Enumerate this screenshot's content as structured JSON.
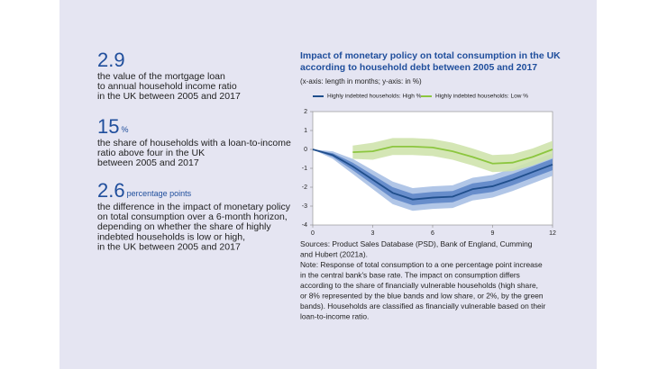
{
  "key_figures": [
    {
      "figure": "2.9",
      "lines": [
        "the value of the mortgage loan",
        "to annual household income ratio",
        "in the UK between 2005 and 2017"
      ]
    },
    {
      "figure": "15",
      "unit": "%",
      "lines": [
        "the share of households with a loan-to-income",
        "ratio above four in the UK",
        "between 2005 and 2017"
      ]
    },
    {
      "figure": "2.6",
      "unit": "percentage points",
      "lines": [
        "the difference in the impact of monetary policy",
        "on total consumption over a 6-month horizon,",
        "depending on whether the share of highly",
        "indebted households is low or high,",
        "in the UK between 2005 and 2017"
      ]
    }
  ],
  "chart_data": {
    "type": "line",
    "title_lines": [
      "Impact of monetary policy on total consumption in the UK",
      "according to household debt between 2005 and 2017"
    ],
    "subtitle": "(x-axis: length in months; y-axis: in %)",
    "x": [
      0,
      1,
      2,
      3,
      4,
      5,
      6,
      7,
      8,
      9,
      10,
      11,
      12
    ],
    "xlim": [
      0,
      12
    ],
    "xticks": [
      0,
      3,
      6,
      9,
      12
    ],
    "ylim": [
      -4,
      2
    ],
    "yticks": [
      -4,
      -3,
      -2,
      -1,
      0,
      1,
      2
    ],
    "grid": false,
    "legend": "top",
    "series": [
      {
        "name": "Highly indebted households: High %",
        "color": "#1f4e8c",
        "values": [
          0,
          -0.3,
          -0.9,
          -1.6,
          -2.3,
          -2.65,
          -2.55,
          -2.5,
          -2.1,
          -1.95,
          -1.6,
          -1.2,
          -0.8
        ],
        "bands": [
          {
            "color": "#a9c0e4",
            "low": [
              0,
              -0.5,
              -1.3,
              -2.1,
              -2.9,
              -3.25,
              -3.15,
              -3.1,
              -2.7,
              -2.55,
              -2.2,
              -1.8,
              -1.4
            ],
            "high": [
              0,
              -0.1,
              -0.5,
              -1.1,
              -1.7,
              -2.05,
              -1.95,
              -1.9,
              -1.5,
              -1.35,
              -1,
              -0.6,
              -0.2
            ]
          },
          {
            "color": "#5f86c8",
            "low": [
              0,
              -0.4,
              -1.1,
              -1.85,
              -2.6,
              -2.95,
              -2.85,
              -2.8,
              -2.4,
              -2.25,
              -1.9,
              -1.5,
              -1.1
            ],
            "high": [
              0,
              -0.2,
              -0.7,
              -1.35,
              -2,
              -2.35,
              -2.25,
              -2.2,
              -1.8,
              -1.65,
              -1.3,
              -0.9,
              -0.5
            ]
          }
        ]
      },
      {
        "name": "Highly indebted households: Low %",
        "color": "#8cc63f",
        "values": [
          null,
          null,
          -0.15,
          -0.1,
          0.15,
          0.15,
          0.1,
          -0.1,
          -0.4,
          -0.75,
          -0.7,
          -0.4,
          0
        ],
        "bands": [
          {
            "color": "#cfe3ad",
            "low": [
              null,
              null,
              -0.5,
              -0.55,
              -0.3,
              -0.3,
              -0.35,
              -0.55,
              -0.85,
              -1.2,
              -1.15,
              -0.85,
              -0.45
            ],
            "high": [
              null,
              null,
              0.2,
              0.35,
              0.6,
              0.6,
              0.55,
              0.35,
              0.05,
              -0.3,
              -0.25,
              0.05,
              0.45
            ]
          }
        ]
      }
    ],
    "notes": [
      "Sources: Product Sales Database (PSD), Bank of England, Cumming",
      "and Hubert (2021a).",
      "Note: Response of total consumption to a one percentage point increase",
      "in the central bank's base rate. The impact on consumption differs",
      "according to the share of financially vulnerable households (high share,",
      "or 8% represented by the blue bands and low share, or 2%, by the green",
      "bands). Households are classified as financially vulnerable based on their",
      "loan-to-income ratio."
    ]
  }
}
